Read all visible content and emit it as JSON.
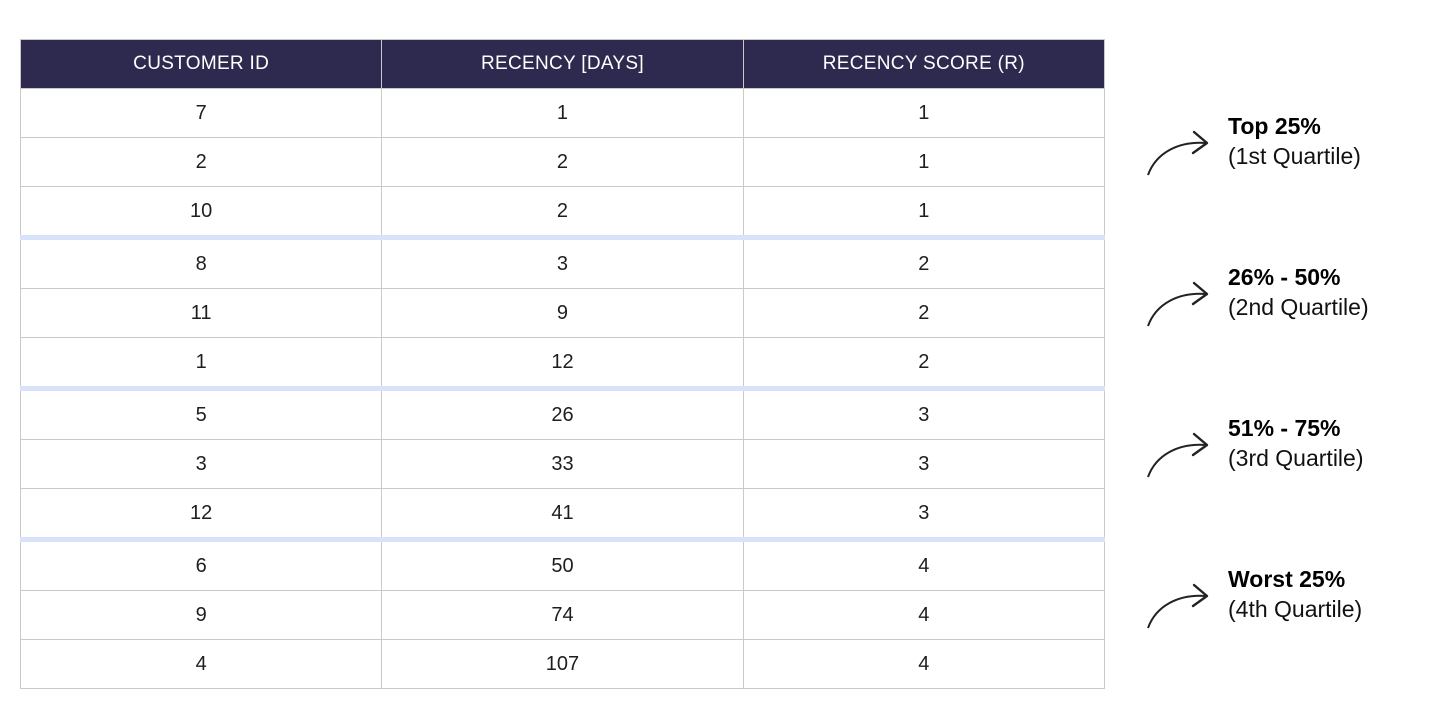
{
  "table": {
    "headers": [
      "CUSTOMER ID",
      "RECENCY [DAYS]",
      "RECENCY SCORE (R)"
    ],
    "rows": [
      [
        "7",
        "1",
        "1"
      ],
      [
        "2",
        "2",
        "1"
      ],
      [
        "10",
        "2",
        "1"
      ],
      [
        "8",
        "3",
        "2"
      ],
      [
        "11",
        "9",
        "2"
      ],
      [
        "1",
        "12",
        "2"
      ],
      [
        "5",
        "26",
        "3"
      ],
      [
        "3",
        "33",
        "3"
      ],
      [
        "12",
        "41",
        "3"
      ],
      [
        "6",
        "50",
        "4"
      ],
      [
        "9",
        "74",
        "4"
      ],
      [
        "4",
        "107",
        "4"
      ]
    ]
  },
  "annotations": [
    {
      "title": "Top 25%",
      "subtitle": "(1st Quartile)"
    },
    {
      "title": "26% - 50%",
      "subtitle": "(2nd Quartile)"
    },
    {
      "title": "51% - 75%",
      "subtitle": "(3rd Quartile)"
    },
    {
      "title": "Worst 25%",
      "subtitle": "(4th Quartile)"
    }
  ],
  "colors": {
    "header_bg": "#2e2a4f",
    "header_text": "#ffffff",
    "group_separator": "#d8e3fb",
    "grid": "#c9c9c9",
    "arrow": "#222222"
  },
  "icons": {
    "annotation_arrow": "curved-arrow-icon"
  }
}
